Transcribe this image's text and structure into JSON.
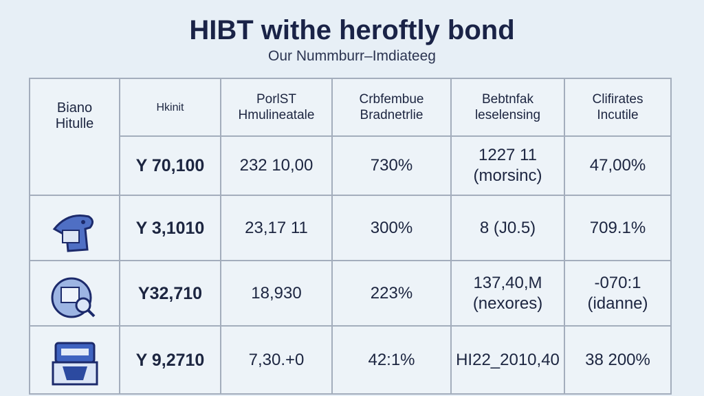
{
  "header": {
    "title": "HIBT withe heroftly bond",
    "subtitle": "Our Nummburr–Imdiateeg"
  },
  "table": {
    "corner": "Biano\nHitulle",
    "columns": [
      "Hkinit",
      "PorlST\nHmulineatale",
      "Crbfembue\nBradnetrlie",
      "Bebtnfak\nleselensing",
      "Clifirates\nIncutile"
    ],
    "rows": [
      [
        "Y 70,100",
        "232 10,00",
        "730%",
        "1227 11\n(morsinc)",
        "47,00%"
      ],
      [
        "Y 3,1010",
        "23,17 11",
        "300%",
        "8 (J0.5)",
        "709.1%"
      ],
      [
        "Y32,710",
        "18,930",
        "223%",
        "137,40,M\n(nexores)",
        "-070:1\n(idanne)"
      ],
      [
        "Y 9,2710",
        "7,30.+0",
        "42:1%",
        "HI22_2010,40",
        "38 200%"
      ]
    ]
  }
}
